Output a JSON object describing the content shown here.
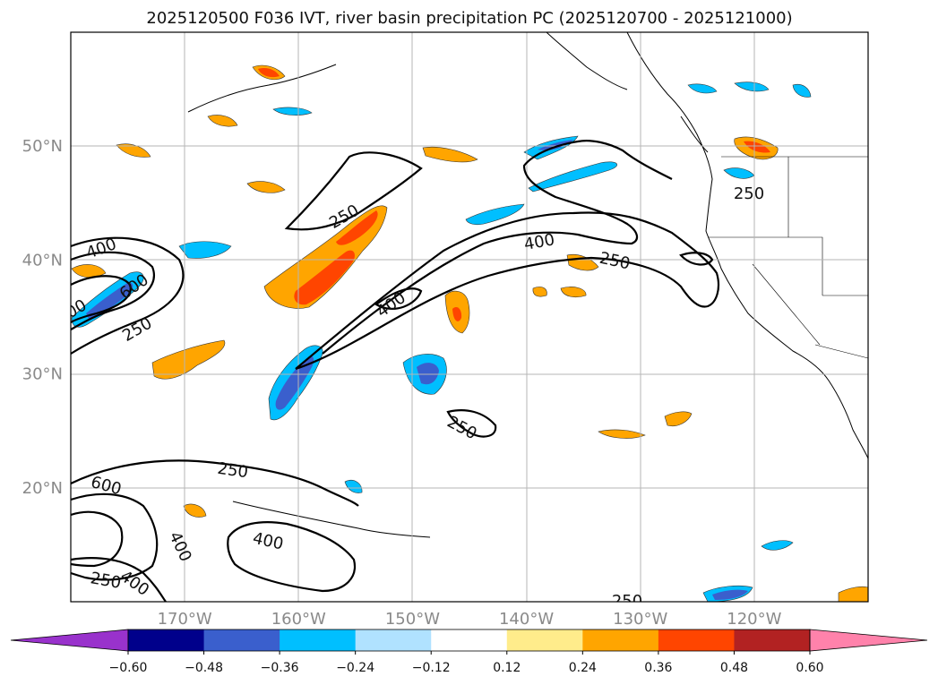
{
  "chart_data": {
    "type": "contour_map",
    "title": "2025120500 F036 IVT, river basin precipitation PC (2025120700 - 2025121000)",
    "region": "North Pacific / western North America",
    "lat_axis": {
      "range": [
        10,
        60
      ],
      "ticks": [
        20,
        30,
        40,
        50
      ],
      "tick_labels": [
        "20°N",
        "30°N",
        "40°N",
        "50°N"
      ]
    },
    "lon_axis": {
      "range": [
        -180,
        -110
      ],
      "ticks": [
        -170,
        -160,
        -150,
        -140,
        -130,
        -120
      ],
      "tick_labels": [
        "170°W",
        "160°W",
        "150°W",
        "140°W",
        "130°W",
        "120°W"
      ]
    },
    "grid": true,
    "ivt_contour_levels": [
      250,
      400,
      600
    ],
    "contour_labels": [
      {
        "text": "250",
        "lon": -174.5,
        "lat": 35.5
      },
      {
        "text": "250",
        "lon": -158.5,
        "lat": 41.0
      },
      {
        "text": "250",
        "lon": -118.5,
        "lat": 49.0
      },
      {
        "text": "250",
        "lon": -133.0,
        "lat": 40.0
      },
      {
        "text": "250",
        "lon": -144.0,
        "lat": 26.5
      },
      {
        "text": "250",
        "lon": -162.0,
        "lat": 21.5
      },
      {
        "text": "250",
        "lon": -178.5,
        "lat": 12.0
      },
      {
        "text": "250",
        "lon": -136.5,
        "lat": 10.2
      },
      {
        "text": "400",
        "lon": -177.5,
        "lat": 41.0
      },
      {
        "text": "400",
        "lon": -138.0,
        "lat": 41.5
      },
      {
        "text": "400",
        "lon": -152.5,
        "lat": 36.5
      },
      {
        "text": "400",
        "lon": -173.5,
        "lat": 15.0
      },
      {
        "text": "400",
        "lon": -158.5,
        "lat": 15.3
      },
      {
        "text": "400",
        "lon": -175.0,
        "lat": 11.8
      },
      {
        "text": "600",
        "lon": -178.5,
        "lat": 20.0
      },
      {
        "text": "600",
        "lon": -174.0,
        "lat": 37.5
      },
      {
        "text": "00",
        "lon": -179.5,
        "lat": 36.5
      }
    ],
    "colorbar": {
      "ticks": [
        -0.6,
        -0.48,
        -0.36,
        -0.24,
        -0.12,
        0.12,
        0.24,
        0.36,
        0.48,
        0.6
      ],
      "tick_labels": [
        "−0.60",
        "−0.48",
        "−0.36",
        "−0.24",
        "−0.12",
        "0.12",
        "0.24",
        "0.36",
        "0.48",
        "0.60"
      ],
      "colors": [
        "#9932cc",
        "#00008b",
        "#3a5fcd",
        "#00bfff",
        "#b0e2ff",
        "#ffffff",
        "#ffec8b",
        "#ffa500",
        "#ff4500",
        "#b22222",
        "#ff82ab"
      ],
      "extend": "both"
    },
    "precip_pc_features": [
      {
        "name": "positive_band_central_pacific",
        "value_range": [
          0.24,
          0.48
        ]
      },
      {
        "name": "negative_band_subtropical",
        "value_range": [
          -0.48,
          -0.24
        ]
      },
      {
        "name": "negative_band_northeast",
        "value_range": [
          -0.36,
          -0.24
        ]
      },
      {
        "name": "positive_band_sw_of_hawaii",
        "value_range": [
          0.24,
          0.36
        ]
      },
      {
        "name": "positive_patch_pacific_nw",
        "value_range": [
          0.24,
          0.36
        ]
      }
    ]
  }
}
